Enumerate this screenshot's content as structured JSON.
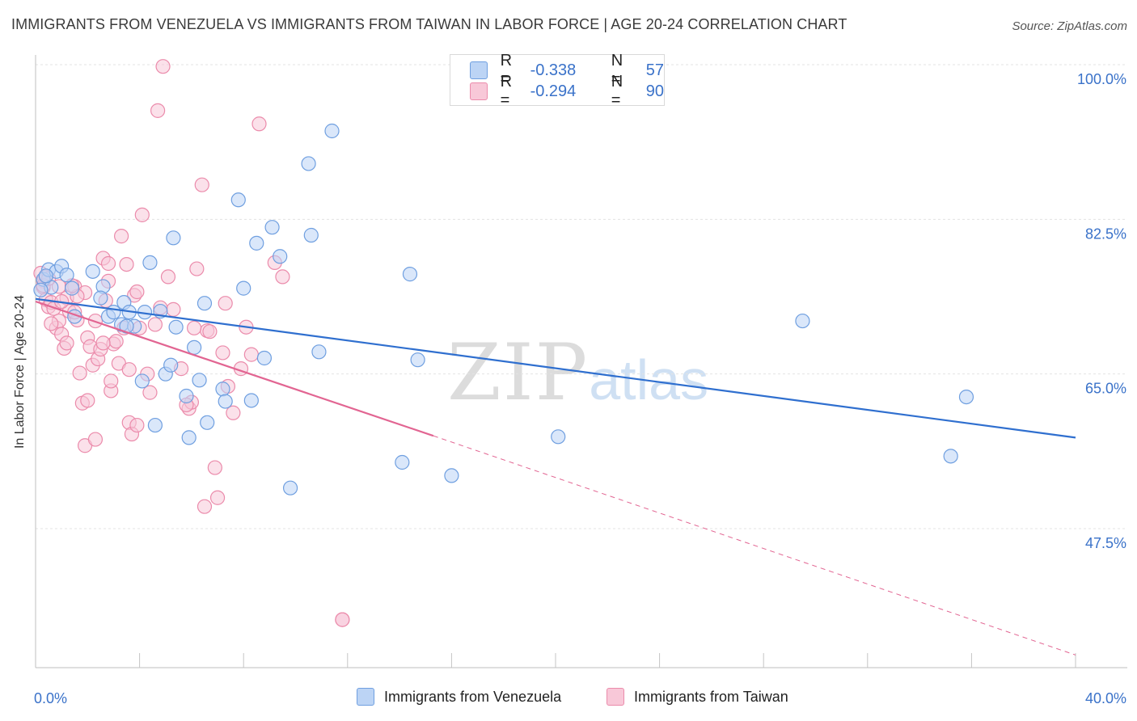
{
  "title": "IMMIGRANTS FROM VENEZUELA VS IMMIGRANTS FROM TAIWAN IN LABOR FORCE | AGE 20-24 CORRELATION CHART",
  "source": "Source: ZipAtlas.com",
  "watermark": {
    "zip": "ZIP",
    "atlas": "atlas"
  },
  "legend": {
    "venezuela": {
      "r_label": "R =",
      "r_value": "-0.338",
      "n_label": "N =",
      "n_value": "57"
    },
    "taiwan": {
      "r_label": "R =",
      "r_value": "-0.294",
      "n_label": "N =",
      "n_value": "90"
    }
  },
  "colors": {
    "venezuela_fill": "#bcd4f5",
    "venezuela_stroke": "#6f9fe0",
    "venezuela_line": "#2f6fcf",
    "taiwan_fill": "#f8c8d8",
    "taiwan_stroke": "#eb8bab",
    "taiwan_line": "#e26592",
    "tick_label": "#3a72c9",
    "grid": "#e3e3e3"
  },
  "chart_data": {
    "type": "scatter",
    "title": "IMMIGRANTS FROM VENEZUELA VS IMMIGRANTS FROM TAIWAN IN LABOR FORCE | AGE 20-24 CORRELATION CHART",
    "xlabel": "",
    "ylabel": "In Labor Force | Age 20-24",
    "xlim": [
      0,
      40
    ],
    "ylim": [
      31,
      102
    ],
    "x_tick_labels": [
      "0.0%",
      "40.0%"
    ],
    "y_ticks": [
      47.5,
      65.0,
      82.5,
      100.0
    ],
    "y_tick_labels": [
      "47.5%",
      "65.0%",
      "82.5%",
      "100.0%"
    ],
    "grid": true,
    "legend_position": "top-center",
    "series": [
      {
        "name": "Immigrants from Venezuela",
        "points": [
          [
            0.3,
            75.7
          ],
          [
            0.5,
            76.8
          ],
          [
            0.6,
            74.8
          ],
          [
            0.8,
            76.6
          ],
          [
            1.0,
            77.2
          ],
          [
            1.2,
            76.2
          ],
          [
            1.4,
            74.7
          ],
          [
            0.4,
            76.1
          ],
          [
            0.2,
            74.5
          ],
          [
            1.5,
            71.5
          ],
          [
            2.2,
            76.6
          ],
          [
            2.6,
            74.9
          ],
          [
            2.5,
            73.6
          ],
          [
            2.8,
            71.5
          ],
          [
            3.0,
            72.0
          ],
          [
            3.3,
            70.6
          ],
          [
            3.4,
            73.1
          ],
          [
            3.6,
            72.0
          ],
          [
            3.8,
            70.4
          ],
          [
            4.1,
            64.2
          ],
          [
            4.2,
            72.0
          ],
          [
            4.4,
            77.6
          ],
          [
            4.6,
            59.2
          ],
          [
            4.8,
            72.1
          ],
          [
            5.0,
            65.0
          ],
          [
            5.2,
            66.0
          ],
          [
            5.3,
            80.4
          ],
          [
            5.4,
            70.3
          ],
          [
            5.8,
            62.5
          ],
          [
            5.9,
            57.8
          ],
          [
            6.1,
            68.0
          ],
          [
            6.3,
            64.3
          ],
          [
            6.5,
            73.0
          ],
          [
            6.6,
            59.5
          ],
          [
            7.2,
            63.3
          ],
          [
            7.3,
            61.9
          ],
          [
            7.8,
            84.7
          ],
          [
            8.0,
            74.7
          ],
          [
            8.3,
            62.0
          ],
          [
            8.5,
            79.8
          ],
          [
            8.8,
            66.8
          ],
          [
            9.1,
            81.6
          ],
          [
            9.4,
            78.3
          ],
          [
            9.8,
            52.1
          ],
          [
            10.5,
            88.8
          ],
          [
            10.6,
            80.7
          ],
          [
            10.9,
            67.5
          ],
          [
            11.4,
            92.5
          ],
          [
            14.1,
            55.0
          ],
          [
            14.4,
            76.3
          ],
          [
            14.7,
            66.6
          ],
          [
            16.0,
            53.5
          ],
          [
            20.1,
            57.9
          ],
          [
            29.5,
            71.0
          ],
          [
            35.2,
            55.7
          ],
          [
            35.8,
            62.4
          ],
          [
            3.5,
            70.4
          ]
        ]
      },
      {
        "name": "Immigrants from Taiwan",
        "points": [
          [
            0.2,
            76.4
          ],
          [
            0.3,
            75.5
          ],
          [
            0.3,
            74.8
          ],
          [
            0.4,
            73.4
          ],
          [
            0.5,
            72.6
          ],
          [
            0.6,
            73.1
          ],
          [
            0.7,
            72.4
          ],
          [
            0.8,
            70.2
          ],
          [
            0.9,
            71.0
          ],
          [
            1.0,
            69.5
          ],
          [
            1.1,
            67.9
          ],
          [
            1.2,
            73.6
          ],
          [
            1.3,
            72.1
          ],
          [
            1.5,
            74.9
          ],
          [
            1.6,
            71.1
          ],
          [
            1.7,
            65.1
          ],
          [
            1.8,
            61.7
          ],
          [
            1.9,
            56.9
          ],
          [
            2.0,
            69.1
          ],
          [
            2.1,
            68.1
          ],
          [
            2.2,
            66.0
          ],
          [
            2.3,
            57.6
          ],
          [
            2.4,
            66.7
          ],
          [
            2.5,
            67.8
          ],
          [
            2.6,
            78.1
          ],
          [
            2.7,
            73.3
          ],
          [
            2.8,
            77.5
          ],
          [
            2.9,
            63.1
          ],
          [
            3.0,
            68.4
          ],
          [
            3.1,
            68.7
          ],
          [
            3.2,
            66.2
          ],
          [
            3.3,
            80.6
          ],
          [
            3.4,
            70.2
          ],
          [
            3.5,
            77.4
          ],
          [
            3.6,
            59.5
          ],
          [
            3.7,
            58.2
          ],
          [
            3.8,
            73.9
          ],
          [
            3.9,
            74.3
          ],
          [
            4.0,
            70.2
          ],
          [
            4.1,
            83.0
          ],
          [
            4.3,
            65.0
          ],
          [
            4.6,
            70.6
          ],
          [
            4.7,
            94.8
          ],
          [
            4.9,
            99.8
          ],
          [
            5.1,
            76.0
          ],
          [
            5.3,
            72.3
          ],
          [
            5.6,
            65.6
          ],
          [
            5.9,
            61.1
          ],
          [
            6.0,
            61.8
          ],
          [
            6.2,
            76.9
          ],
          [
            6.4,
            86.4
          ],
          [
            6.6,
            69.9
          ],
          [
            6.7,
            69.8
          ],
          [
            6.9,
            54.4
          ],
          [
            7.0,
            51.0
          ],
          [
            7.2,
            67.4
          ],
          [
            7.4,
            63.6
          ],
          [
            7.6,
            60.6
          ],
          [
            7.9,
            65.6
          ],
          [
            8.1,
            70.3
          ],
          [
            8.3,
            67.2
          ],
          [
            8.6,
            93.3
          ],
          [
            9.2,
            77.6
          ],
          [
            9.5,
            76.0
          ],
          [
            11.8,
            37.2
          ],
          [
            11.8,
            37.2
          ],
          [
            6.5,
            50.0
          ],
          [
            5.8,
            61.5
          ],
          [
            4.4,
            62.9
          ],
          [
            3.9,
            59.2
          ],
          [
            2.9,
            64.2
          ],
          [
            2.6,
            68.5
          ],
          [
            2.3,
            71.0
          ],
          [
            1.9,
            74.2
          ],
          [
            1.5,
            72.0
          ],
          [
            1.0,
            73.2
          ],
          [
            0.6,
            70.7
          ],
          [
            0.4,
            76.0
          ],
          [
            0.3,
            75.0
          ],
          [
            1.2,
            68.5
          ],
          [
            1.6,
            73.8
          ],
          [
            2.0,
            62.0
          ],
          [
            2.8,
            75.5
          ],
          [
            3.6,
            65.5
          ],
          [
            4.8,
            72.5
          ],
          [
            6.1,
            70.2
          ],
          [
            7.3,
            73.0
          ],
          [
            0.9,
            74.9
          ],
          [
            1.4,
            75.0
          ],
          [
            0.5,
            75.8
          ]
        ]
      }
    ],
    "trend_lines": [
      {
        "series": "Immigrants from Venezuela",
        "x": [
          0,
          40
        ],
        "y": [
          73.5,
          57.8
        ],
        "style": "solid"
      },
      {
        "series": "Immigrants from Taiwan",
        "x": [
          0,
          15.3
        ],
        "y": [
          73.2,
          58.0
        ],
        "style": "solid"
      },
      {
        "series": "Immigrants from Taiwan",
        "x": [
          15.3,
          40
        ],
        "y": [
          58.0,
          33.2
        ],
        "style": "dashed"
      }
    ]
  },
  "bottom_legend": {
    "venezuela": "Immigrants from Venezuela",
    "taiwan": "Immigrants from Taiwan"
  }
}
